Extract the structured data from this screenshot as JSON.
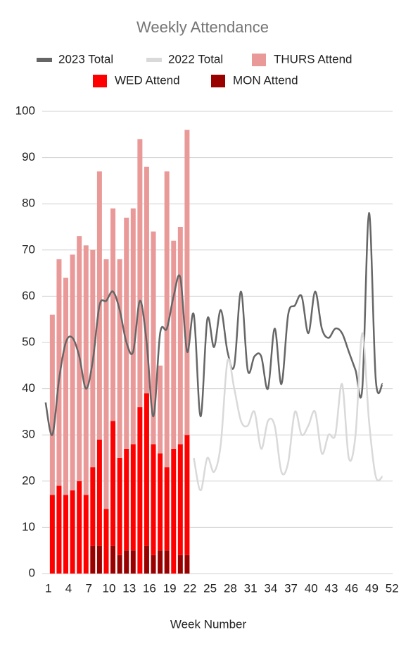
{
  "chart_data": {
    "type": "combo",
    "title": "Weekly Attendance",
    "x_label": "Week Number",
    "categories": [
      1,
      null,
      null,
      4,
      null,
      null,
      7,
      null,
      null,
      10,
      null,
      null,
      13,
      null,
      null,
      16,
      null,
      null,
      19,
      null,
      null,
      22,
      null,
      null,
      25,
      null,
      null,
      28,
      null,
      null,
      31,
      null,
      null,
      34,
      null,
      null,
      37,
      null,
      null,
      40,
      null,
      null,
      43,
      null,
      null,
      46,
      null,
      null,
      49,
      null,
      null,
      52
    ],
    "ylim": [
      0,
      100
    ],
    "yticks": [
      0,
      10,
      20,
      30,
      40,
      50,
      60,
      70,
      80,
      90,
      100
    ],
    "grid": true,
    "series": [
      {
        "name": "2023 Total",
        "type": "line",
        "color": "#666666",
        "values": [
          37,
          30,
          42,
          50,
          51,
          47,
          40,
          46,
          58,
          59,
          61,
          57,
          50,
          48,
          59,
          50,
          34,
          52,
          53,
          60,
          64,
          48,
          56,
          34,
          55,
          49,
          57,
          48,
          45,
          61,
          44,
          47,
          47,
          40,
          53,
          41,
          56,
          58,
          60,
          52,
          61,
          53,
          51,
          53,
          52,
          48,
          44,
          40,
          78,
          42,
          41,
          null
        ]
      },
      {
        "name": "2022 Total",
        "type": "line",
        "color": "#d9d9d9",
        "values": [
          null,
          null,
          null,
          null,
          null,
          null,
          null,
          null,
          null,
          null,
          null,
          null,
          null,
          null,
          null,
          null,
          null,
          null,
          null,
          null,
          null,
          null,
          25,
          18,
          25,
          22,
          28,
          46,
          40,
          33,
          32,
          35,
          27,
          33,
          32,
          22,
          24,
          35,
          30,
          32,
          35,
          26,
          30,
          30,
          41,
          25,
          30,
          52,
          33,
          21,
          21,
          null
        ]
      },
      {
        "name": "THURS Attend",
        "type": "bar",
        "color": "#ea9999",
        "values": [
          null,
          39,
          49,
          47,
          51,
          53,
          54,
          47,
          58,
          54,
          46,
          43,
          50,
          51,
          58,
          49,
          46,
          19,
          64,
          45,
          47,
          66,
          null,
          null,
          null,
          null,
          null,
          null,
          null,
          null,
          null,
          null,
          null,
          null,
          null,
          null,
          null,
          null,
          null,
          null,
          null,
          null,
          null,
          null,
          null,
          null,
          null,
          null,
          null,
          null,
          null,
          null
        ]
      },
      {
        "name": "WED Attend",
        "type": "bar",
        "color": "#ff0000",
        "values": [
          null,
          17,
          19,
          17,
          18,
          20,
          17,
          17,
          23,
          14,
          27,
          21,
          22,
          23,
          36,
          33,
          24,
          21,
          18,
          27,
          24,
          26,
          null,
          null,
          null,
          null,
          null,
          null,
          null,
          null,
          null,
          null,
          null,
          null,
          null,
          null,
          null,
          null,
          null,
          null,
          null,
          null,
          null,
          null,
          null,
          null,
          null,
          null,
          null,
          null,
          null,
          null
        ]
      },
      {
        "name": "MON Attend",
        "type": "bar",
        "color": "#990000",
        "values": [
          null,
          0,
          0,
          0,
          0,
          0,
          0,
          6,
          6,
          0,
          6,
          4,
          5,
          5,
          0,
          6,
          4,
          5,
          5,
          0,
          4,
          4,
          null,
          null,
          null,
          null,
          null,
          null,
          null,
          null,
          null,
          null,
          null,
          null,
          null,
          null,
          null,
          null,
          null,
          null,
          null,
          null,
          null,
          null,
          null,
          null,
          null,
          null,
          null,
          null,
          null,
          null
        ]
      }
    ]
  }
}
